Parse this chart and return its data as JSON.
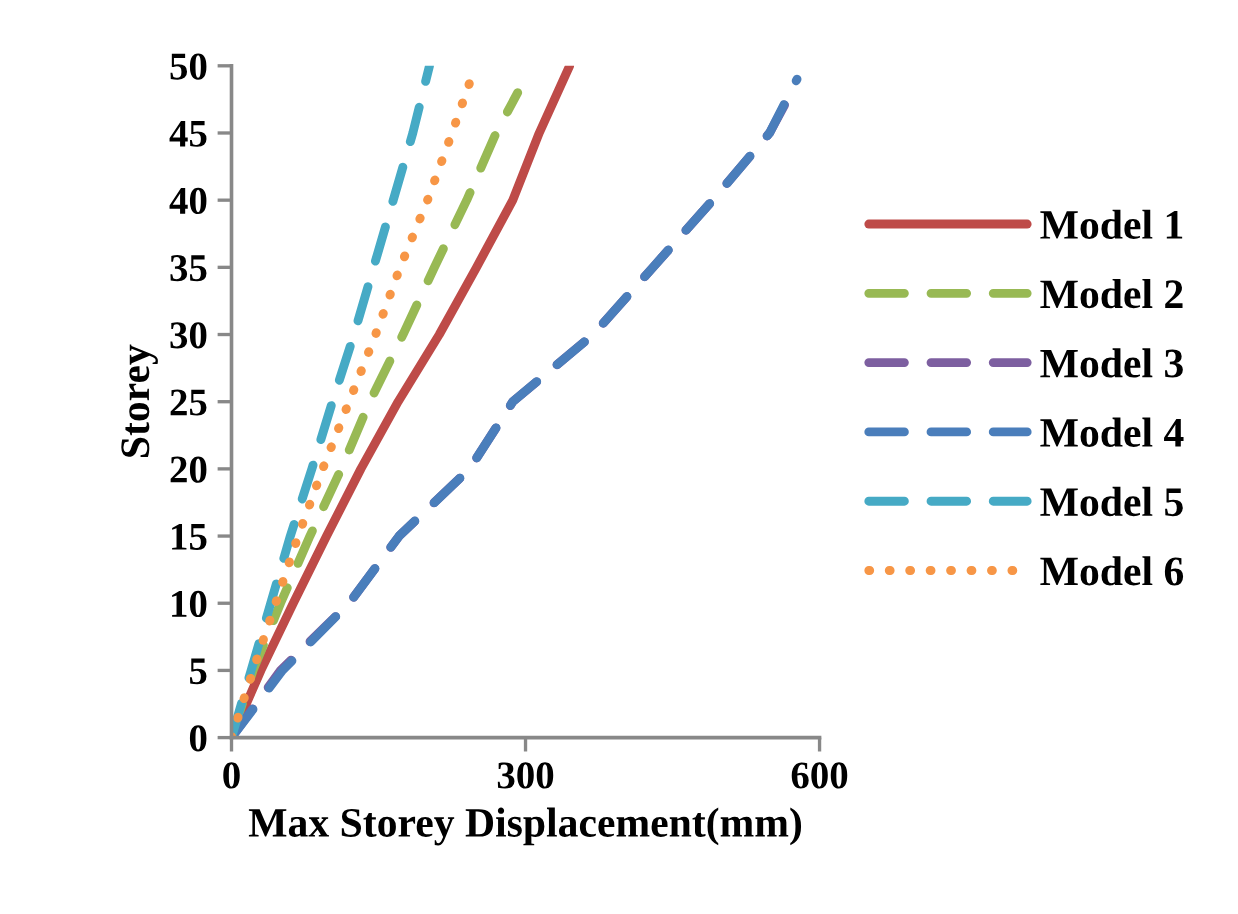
{
  "chart_data": {
    "type": "line",
    "xlabel": "Max Storey Displacement(mm)",
    "ylabel": "Storey",
    "xlim": [
      0,
      600
    ],
    "xticks": [
      0,
      300,
      600
    ],
    "ylim": [
      0,
      50
    ],
    "yticks": [
      0,
      5,
      10,
      15,
      20,
      25,
      30,
      35,
      40,
      45,
      50
    ],
    "grid": false,
    "legend": "right",
    "marker": "none",
    "series": [
      {
        "name": "Model 1",
        "color": "#be4b48",
        "line_style": "solid",
        "x": [
          0,
          30,
          63,
          97,
          132,
          170,
          212,
          250,
          287,
          314,
          345
        ],
        "values": [
          0,
          5,
          10,
          15,
          20,
          25,
          30,
          35,
          40,
          45,
          50
        ]
      },
      {
        "name": "Model 2",
        "color": "#98b954",
        "line_style": "dashed",
        "x": [
          0,
          22,
          50,
          80,
          112,
          141,
          175,
          207,
          240,
          270,
          292
        ],
        "values": [
          0,
          5,
          10,
          15,
          20,
          25,
          30,
          35,
          40,
          45,
          48
        ]
      },
      {
        "name": "Model 3",
        "color": "#7d5fa0",
        "line_style": "dashed",
        "x": [
          0,
          50,
          120,
          171,
          243,
          287,
          369,
          430,
          491,
          549,
          571
        ],
        "values": [
          0,
          5,
          10,
          15,
          20,
          25,
          30,
          35,
          40,
          45,
          48
        ]
      },
      {
        "name": "Model 4",
        "color": "#4a7ebb",
        "line_style": "dashed",
        "x": [
          0,
          52,
          120,
          171,
          243,
          287,
          369,
          430,
          491,
          549,
          577
        ],
        "values": [
          0,
          5,
          10,
          15,
          20,
          25,
          30,
          35,
          40,
          45,
          49
        ]
      },
      {
        "name": "Model 5",
        "color": "#46aac5",
        "line_style": "dashed",
        "x": [
          0,
          20,
          40,
          60,
          82,
          103,
          125,
          145,
          165,
          185,
          202
        ],
        "values": [
          0,
          5,
          10,
          15,
          20,
          25,
          30,
          35,
          40,
          45,
          50
        ]
      },
      {
        "name": "Model 6",
        "color": "#f79646",
        "line_style": "dotted",
        "x": [
          0,
          22,
          45,
          68,
          93,
          120,
          147,
          172,
          200,
          225,
          249
        ],
        "values": [
          0,
          5,
          10,
          15,
          20,
          25,
          30,
          35,
          40,
          45,
          50
        ]
      }
    ]
  }
}
